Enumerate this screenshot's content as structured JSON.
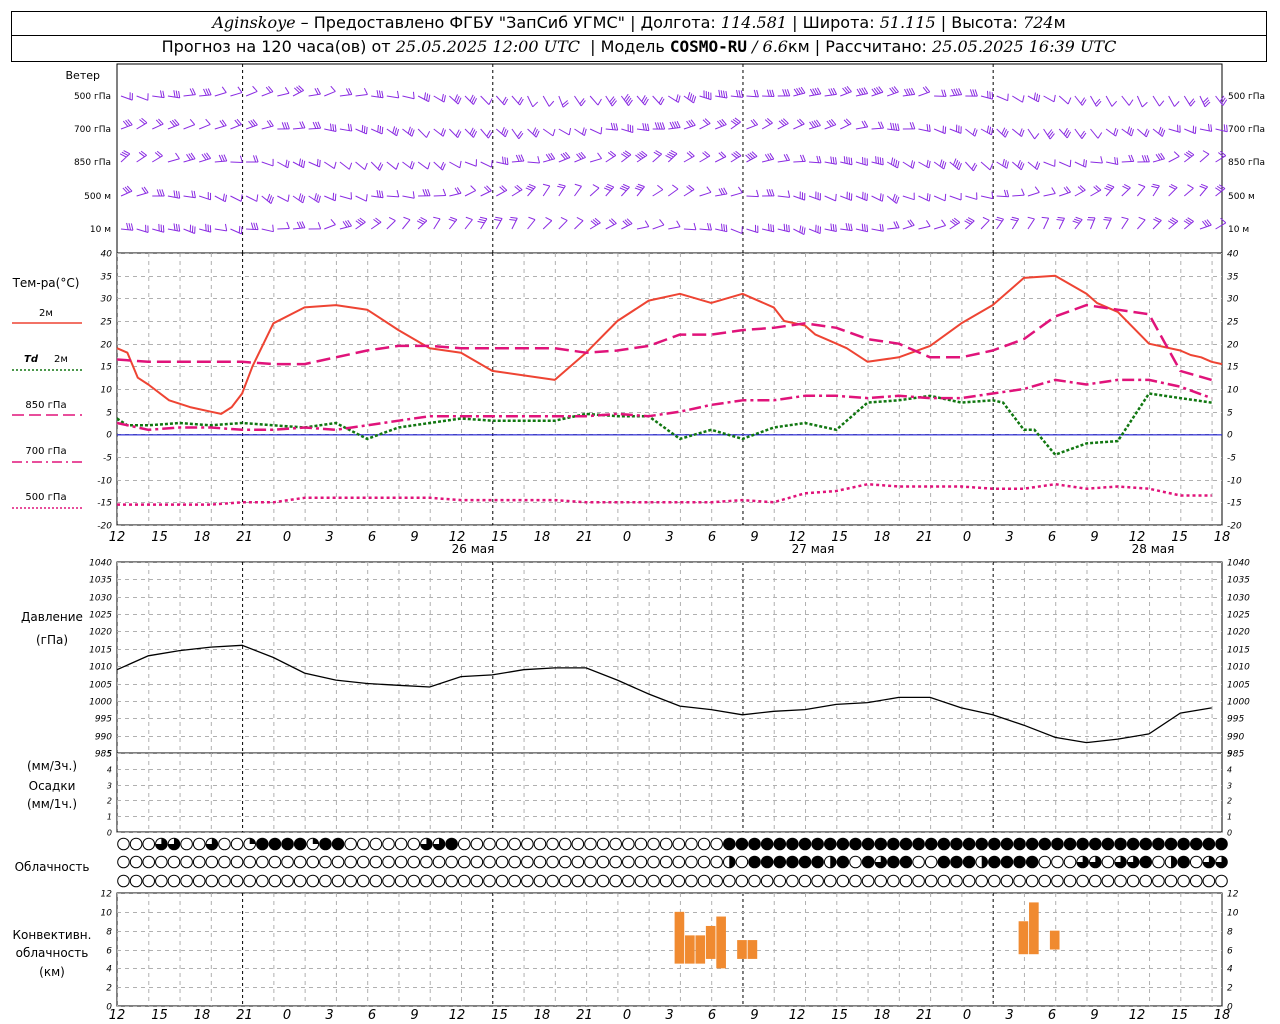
{
  "header": {
    "station": "Aginskoye",
    "provider": "– Предоставлено ФГБУ \"ЗапСиб УГМС\"",
    "lon_label": "Долгота:",
    "lon": "114.581",
    "lat_label": "Широта:",
    "lat": "51.115",
    "alt_label": "Высота:",
    "alt": "724",
    "alt_unit": "м",
    "forecast_label": "Прогноз на 120 часа(ов) от",
    "forecast_time": "25.05.2025 12:00 UTC",
    "model_label": "Модель",
    "model": "COSMO-RU",
    "model_res": "/ 6.6",
    "model_res_unit": "км",
    "calc_label": "Рассчитано:",
    "calc_time": "25.05.2025 16:39 UTC"
  },
  "labels": {
    "wind": "Ветер",
    "wind_levels": [
      "500 гПа",
      "700 гПа",
      "850 гПа",
      "500 м",
      "10 м"
    ],
    "temp_title": "Тем-ра(°C)",
    "legend_t2m": "2м",
    "legend_td_a": "Td",
    "legend_td_b": "2м",
    "legend_850": "850 гПа",
    "legend_700": "700 гПа",
    "legend_500": "500 гПа",
    "pressure_a": "Давление",
    "pressure_b": "(гПа)",
    "precip_a": "(мм/3ч.)",
    "precip_b": "Осадки",
    "precip_c": "(мм/1ч.)",
    "cloud": "Облачность",
    "conv_a": "Конвективн.",
    "conv_b": "облачность",
    "conv_c": "(км)",
    "day1": "26 мая",
    "day2": "27 мая",
    "day3": "28 мая"
  },
  "colors": {
    "wind": "#8a2be2",
    "t2m": "#ee4433",
    "td2m": "#117711",
    "t850": "#e0137a",
    "t700": "#e0137a",
    "t500": "#e0137a",
    "pressure": "#000000",
    "conv": "#f08a30",
    "zero": "#0000cc"
  },
  "chart_data": [
    {
      "type": "line",
      "name": "temperature",
      "x_ticks": [
        "12",
        "15",
        "18",
        "21",
        "0",
        "3",
        "6",
        "9",
        "12",
        "15",
        "18",
        "21",
        "0",
        "3",
        "6",
        "9",
        "12",
        "15",
        "18",
        "21",
        "0",
        "3",
        "6",
        "9",
        "12",
        "15",
        "18"
      ],
      "ylim": [
        -20,
        40
      ],
      "yticks": [
        -20,
        -15,
        -10,
        -5,
        0,
        5,
        10,
        15,
        20,
        25,
        30,
        35,
        40
      ],
      "series": [
        {
          "name": "2м",
          "key": "t2m",
          "x": [
            0,
            1,
            2,
            3,
            5,
            7,
            9,
            10,
            11,
            12,
            13,
            15,
            18,
            21,
            24,
            27,
            30,
            33,
            36,
            39,
            42,
            45,
            48,
            51,
            54,
            57,
            60,
            63,
            64,
            66,
            67,
            68,
            70,
            72,
            75,
            78,
            81,
            84,
            87,
            90,
            93,
            94,
            95,
            96,
            99,
            102,
            103,
            104,
            105,
            106
          ],
          "y": [
            19,
            18,
            12.5,
            11,
            7.5,
            6,
            5,
            4.5,
            6,
            9,
            15,
            24.5,
            28,
            28.5,
            27.5,
            23,
            19,
            18,
            14,
            13,
            12,
            18,
            25,
            29.5,
            31,
            29,
            31,
            28,
            25,
            24,
            22,
            21,
            19,
            16,
            17,
            19.5,
            24.5,
            28.5,
            34.5,
            35,
            31,
            29,
            28,
            27,
            20,
            18.5,
            17.5,
            17,
            16,
            15.5
          ]
        },
        {
          "name": "2м",
          "key": "td2m",
          "x": [
            0,
            1,
            3,
            6,
            9,
            12,
            15,
            18,
            21,
            24,
            27,
            30,
            33,
            36,
            39,
            42,
            45,
            48,
            51,
            54,
            57,
            60,
            63,
            66,
            69,
            72,
            75,
            78,
            81,
            84,
            85,
            87,
            88,
            90,
            93,
            96,
            99,
            102,
            105
          ],
          "y": [
            3.5,
            2,
            2,
            2.5,
            2,
            2.5,
            2,
            1.5,
            2.5,
            -1,
            1.5,
            2.5,
            3.5,
            3,
            3,
            3,
            4.5,
            4,
            4,
            -1,
            1,
            -1,
            1.5,
            2.5,
            1,
            7,
            7.5,
            8.5,
            7,
            7.5,
            7,
            1,
            1,
            -4.5,
            -2,
            -1.5,
            9,
            8,
            7
          ]
        },
        {
          "name": "850 гПа",
          "key": "t850",
          "x": [
            0,
            3,
            6,
            9,
            12,
            15,
            18,
            21,
            24,
            27,
            30,
            33,
            36,
            39,
            42,
            45,
            48,
            51,
            54,
            57,
            60,
            63,
            66,
            69,
            72,
            75,
            78,
            81,
            84,
            87,
            90,
            93,
            96,
            99,
            102,
            105
          ],
          "y": [
            16.5,
            16,
            16,
            16,
            16,
            15.5,
            15.5,
            17,
            18.5,
            19.5,
            19.5,
            19,
            19,
            19,
            19,
            18,
            18.5,
            19.5,
            22,
            22,
            23,
            23.5,
            24.5,
            23.5,
            21,
            20,
            17,
            17,
            18.5,
            21,
            26,
            28.5,
            27.5,
            26.5,
            14,
            12
          ]
        },
        {
          "name": "700 гПа",
          "key": "t700",
          "x": [
            0,
            3,
            6,
            9,
            12,
            15,
            18,
            21,
            24,
            27,
            30,
            33,
            36,
            39,
            42,
            45,
            48,
            51,
            54,
            57,
            60,
            63,
            66,
            69,
            72,
            75,
            78,
            81,
            84,
            87,
            90,
            93,
            96,
            99,
            102,
            105
          ],
          "y": [
            2.5,
            1,
            1.5,
            1.5,
            1,
            1,
            1.5,
            1,
            2,
            3,
            4,
            4,
            4,
            4,
            4,
            4,
            4.5,
            4,
            5,
            6.5,
            7.5,
            7.5,
            8.5,
            8.5,
            8,
            8.5,
            8,
            8,
            9,
            10,
            12,
            11,
            12,
            12,
            10.5,
            8
          ]
        },
        {
          "name": "500 гПа",
          "key": "t500",
          "x": [
            0,
            3,
            6,
            9,
            12,
            15,
            18,
            21,
            24,
            27,
            30,
            33,
            36,
            39,
            42,
            45,
            48,
            51,
            54,
            57,
            60,
            63,
            66,
            69,
            72,
            75,
            78,
            81,
            84,
            87,
            90,
            93,
            96,
            99,
            102,
            105
          ],
          "y": [
            -15.5,
            -15.5,
            -15.5,
            -15.5,
            -15,
            -15,
            -14,
            -14,
            -14,
            -14,
            -14,
            -14.5,
            -14.5,
            -14.5,
            -14.5,
            -15,
            -15,
            -15,
            -15,
            -15,
            -14.5,
            -15,
            -13,
            -12.5,
            -11,
            -11.5,
            -11.5,
            -11.5,
            -12,
            -12,
            -11,
            -12,
            -11.5,
            -12,
            -13.5,
            -13.5
          ]
        }
      ]
    },
    {
      "type": "line",
      "name": "pressure",
      "ylim": [
        985,
        1040
      ],
      "yticks": [
        985,
        990,
        995,
        1000,
        1005,
        1010,
        1015,
        1020,
        1025,
        1030,
        1035,
        1040
      ],
      "series": [
        {
          "name": "Давление",
          "key": "pressure",
          "x": [
            0,
            3,
            6,
            9,
            12,
            15,
            18,
            21,
            24,
            27,
            30,
            33,
            36,
            39,
            42,
            45,
            48,
            51,
            54,
            57,
            60,
            63,
            66,
            69,
            72,
            75,
            78,
            81,
            84,
            87,
            90,
            93,
            96,
            99,
            102,
            105
          ],
          "y": [
            1009,
            1013,
            1014.5,
            1015.5,
            1016,
            1012.5,
            1008,
            1006,
            1005,
            1004.5,
            1004,
            1007,
            1007.5,
            1009,
            1009.5,
            1009.5,
            1006,
            1002,
            998.5,
            997.5,
            996,
            997,
            997.5,
            999,
            999.5,
            1001,
            1001,
            998,
            996,
            993,
            989.5,
            988,
            989,
            990.5,
            996.5,
            998
          ]
        }
      ]
    },
    {
      "type": "bar",
      "name": "precipitation",
      "ylim": [
        0,
        5
      ],
      "yticks": [
        0,
        1,
        2,
        3,
        4,
        5
      ],
      "values": []
    },
    {
      "type": "bar",
      "name": "convective_cloud",
      "ylim": [
        0,
        12
      ],
      "yticks": [
        0,
        2,
        4,
        6,
        8,
        10,
        12
      ],
      "bars": [
        {
          "x": 54,
          "bottom": 4.5,
          "top": 10
        },
        {
          "x": 55,
          "bottom": 4.5,
          "top": 7.5
        },
        {
          "x": 56,
          "bottom": 4.5,
          "top": 7.5
        },
        {
          "x": 57,
          "bottom": 5,
          "top": 8.5
        },
        {
          "x": 58,
          "bottom": 4,
          "top": 9.5
        },
        {
          "x": 60,
          "bottom": 5,
          "top": 7
        },
        {
          "x": 61,
          "bottom": 5,
          "top": 7
        },
        {
          "x": 87,
          "bottom": 5.5,
          "top": 9
        },
        {
          "x": 88,
          "bottom": 5.5,
          "top": 11
        },
        {
          "x": 90,
          "bottom": 6,
          "top": 8
        }
      ]
    }
  ],
  "clouds": {
    "rows": [
      "0003300300144441440000003340000000000000000000004444444444444444444444444444444444444444",
      "0000000000000000000000000000000000000000000000002044444424043440044424444000330334024033",
      "0000000000000000000000000000000000000000000000000000000000000000000000000000000000000000"
    ]
  },
  "wind": {
    "rows": [
      {
        "level": "500 гПа",
        "seed": 1
      },
      {
        "level": "700 гПа",
        "seed": 2
      },
      {
        "level": "850 гПа",
        "seed": 3
      },
      {
        "level": "500 м",
        "seed": 4
      },
      {
        "level": "10 м",
        "seed": 5
      }
    ]
  }
}
